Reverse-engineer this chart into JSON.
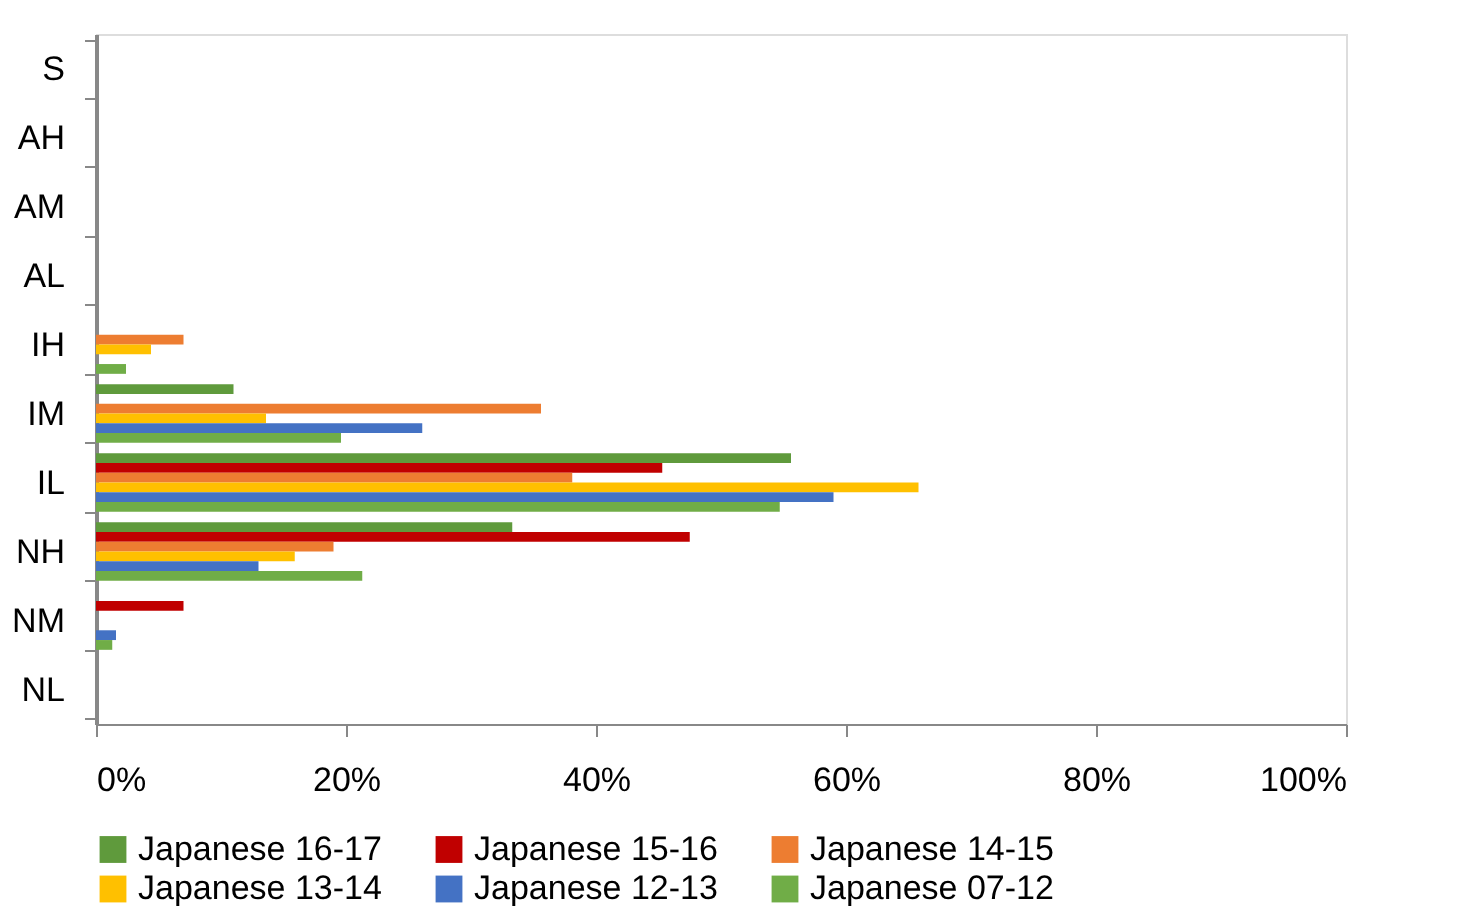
{
  "chart_data": {
    "type": "bar",
    "orientation": "horizontal",
    "categories": [
      "S",
      "AH",
      "AM",
      "AL",
      "IH",
      "IM",
      "IL",
      "NH",
      "NM",
      "NL"
    ],
    "series": [
      {
        "name": "Japanese 16-17",
        "color": "#5f9a3c",
        "values": [
          0,
          0,
          0,
          0,
          0,
          11.0,
          55.6,
          33.3,
          0,
          0
        ]
      },
      {
        "name": "Japanese 15-16",
        "color": "#c00000",
        "values": [
          0,
          0,
          0,
          0,
          0,
          0,
          45.3,
          47.5,
          7.0,
          0
        ]
      },
      {
        "name": "Japanese 14-15",
        "color": "#ed7d31",
        "values": [
          0,
          0,
          0,
          0,
          7.0,
          35.6,
          38.1,
          19.0,
          0,
          0
        ]
      },
      {
        "name": "Japanese 13-14",
        "color": "#ffc000",
        "values": [
          0,
          0,
          0,
          0,
          4.4,
          13.6,
          65.8,
          15.9,
          0,
          0
        ]
      },
      {
        "name": "Japanese 12-13",
        "color": "#4472c4",
        "values": [
          0,
          0,
          0,
          0,
          0,
          26.1,
          59.0,
          13.0,
          1.6,
          0
        ]
      },
      {
        "name": "Japanese 07-12",
        "color": "#70ad47",
        "values": [
          0,
          0,
          0,
          0,
          2.4,
          19.6,
          54.7,
          21.3,
          1.3,
          0
        ]
      }
    ],
    "xlim": [
      0,
      100
    ],
    "xticks": [
      {
        "value": 0,
        "label": "0%"
      },
      {
        "value": 20,
        "label": "20%"
      },
      {
        "value": 40,
        "label": "40%"
      },
      {
        "value": 60,
        "label": "60%"
      },
      {
        "value": 80,
        "label": "80%"
      },
      {
        "value": 100,
        "label": "100%"
      }
    ],
    "grid": false,
    "legend": "bottom"
  }
}
